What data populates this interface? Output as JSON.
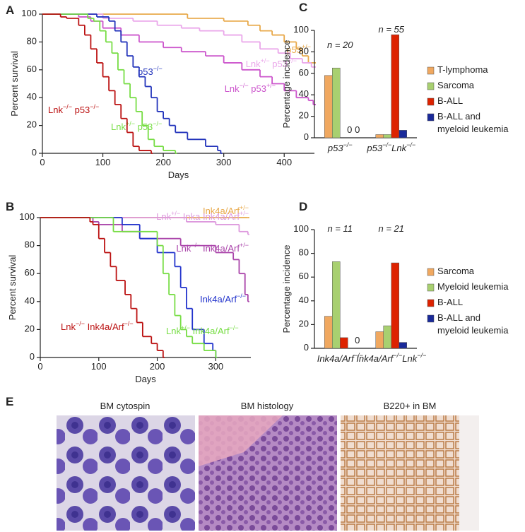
{
  "chart_data": [
    {
      "panel": "A",
      "type": "step",
      "xlabel": "Days",
      "ylabel": "Percent survival",
      "xlim": [
        0,
        450
      ],
      "xticks": [
        0,
        100,
        200,
        300,
        400
      ],
      "ylim": [
        0,
        100
      ],
      "yticks": [
        0,
        20,
        40,
        60,
        80,
        100
      ],
      "series": [
        {
          "name": "p53+/−",
          "color": "#e8a94a",
          "x": [
            0,
            240,
            300,
            340,
            360,
            380,
            400,
            420,
            430,
            440,
            450
          ],
          "values": [
            100,
            97,
            95,
            92,
            88,
            85,
            80,
            75,
            70,
            65,
            65
          ]
        },
        {
          "name": "Lnk+/− p53+/−",
          "color": "#eaa6ea",
          "x": [
            0,
            100,
            150,
            190,
            230,
            260,
            300,
            330,
            360,
            390,
            410,
            430,
            445,
            450
          ],
          "values": [
            100,
            97,
            95,
            92,
            90,
            88,
            85,
            80,
            75,
            72,
            68,
            65,
            62,
            62
          ]
        },
        {
          "name": "Lnk−/− p53+/−",
          "color": "#cc55cc",
          "x": [
            0,
            60,
            80,
            100,
            130,
            160,
            200,
            230,
            270,
            300,
            330,
            360,
            380,
            400,
            420,
            440,
            448,
            450
          ],
          "values": [
            100,
            98,
            95,
            90,
            85,
            80,
            76,
            73,
            70,
            65,
            60,
            55,
            50,
            45,
            40,
            38,
            35,
            35
          ]
        },
        {
          "name": "p53−/−",
          "color": "#2233bb",
          "x": [
            0,
            90,
            110,
            120,
            130,
            140,
            150,
            160,
            170,
            180,
            190,
            200,
            210,
            220,
            240,
            270,
            290,
            295
          ],
          "values": [
            100,
            98,
            95,
            88,
            80,
            70,
            62,
            55,
            48,
            40,
            30,
            25,
            20,
            15,
            10,
            5,
            2,
            0
          ]
        },
        {
          "name": "Lnk+/− p53−/−",
          "color": "#77dd44",
          "x": [
            0,
            75,
            85,
            95,
            105,
            115,
            125,
            135,
            145,
            155,
            165,
            175,
            185,
            200,
            220
          ],
          "values": [
            100,
            97,
            95,
            88,
            80,
            72,
            60,
            50,
            40,
            30,
            20,
            10,
            5,
            2,
            0
          ]
        },
        {
          "name": "Lnk−/− p53−/−",
          "color": "#bb1111",
          "x": [
            0,
            30,
            40,
            60,
            70,
            80,
            90,
            100,
            110,
            120,
            130,
            140,
            150,
            160,
            180
          ],
          "values": [
            100,
            98,
            97,
            92,
            85,
            75,
            65,
            55,
            45,
            35,
            25,
            15,
            5,
            2,
            0
          ]
        }
      ]
    },
    {
      "panel": "B",
      "type": "step",
      "xlabel": "Days",
      "ylabel": "Percent survival",
      "xlim": [
        0,
        360
      ],
      "xticks": [
        0,
        100,
        200,
        300
      ],
      "ylim": [
        0,
        100
      ],
      "yticks": [
        0,
        20,
        40,
        60,
        80,
        100
      ],
      "series": [
        {
          "name": "Ink4a/Arf+/−",
          "color": "#e8a94a",
          "x": [
            0,
            355
          ],
          "values": [
            100,
            100
          ]
        },
        {
          "name": "Lnk+/− Inka Ink4a/Arf+/−",
          "color": "#dd99dd",
          "x": [
            0,
            250,
            300,
            340,
            355
          ],
          "values": [
            100,
            97,
            95,
            90,
            88
          ]
        },
        {
          "name": "Lnk−/− Ink4a/Arf+/−",
          "color": "#aa44aa",
          "x": [
            0,
            90,
            100,
            140,
            170,
            240,
            300,
            330,
            340,
            350,
            355
          ],
          "values": [
            100,
            97,
            95,
            90,
            85,
            80,
            75,
            70,
            60,
            45,
            40
          ]
        },
        {
          "name": "Ink4a/Arf−/−",
          "color": "#2233cc",
          "x": [
            0,
            100,
            140,
            170,
            200,
            230,
            240,
            250,
            260,
            280,
            295,
            300
          ],
          "values": [
            100,
            100,
            95,
            85,
            75,
            65,
            50,
            35,
            20,
            10,
            5,
            0
          ]
        },
        {
          "name": "Lnk+/− Ink4a/Arf−/−",
          "color": "#77dd44",
          "x": [
            0,
            125,
            140,
            200,
            210,
            220,
            230,
            240,
            250,
            260,
            280,
            300
          ],
          "values": [
            100,
            90,
            90,
            80,
            60,
            45,
            30,
            20,
            15,
            10,
            5,
            0
          ]
        },
        {
          "name": "Lnk−/− Ink4a/Arf−/−",
          "color": "#bb1111",
          "x": [
            0,
            85,
            90,
            100,
            110,
            120,
            130,
            145,
            155,
            165,
            175,
            190,
            200,
            210
          ],
          "values": [
            100,
            97,
            95,
            85,
            75,
            65,
            55,
            45,
            35,
            25,
            15,
            10,
            5,
            0
          ]
        }
      ]
    },
    {
      "panel": "C",
      "type": "bar",
      "ylabel": "Percentage incidence",
      "ylim": [
        0,
        100
      ],
      "yticks": [
        0,
        20,
        40,
        60,
        80,
        100
      ],
      "categories": [
        "p53−/−",
        "p53−/−Lnk−/−"
      ],
      "annotations": [
        "n = 20",
        "n = 55"
      ],
      "series": [
        {
          "name": "T-lymphoma",
          "color": "#f0a860",
          "values": [
            58,
            3
          ]
        },
        {
          "name": "Sarcoma",
          "color": "#a8d070",
          "values": [
            65,
            3
          ]
        },
        {
          "name": "B-ALL",
          "color": "#dd2200",
          "values": [
            0,
            96
          ],
          "value_labels": [
            "0",
            null
          ]
        },
        {
          "name": "B-ALL and myeloid leukemia",
          "color": "#1a2a99",
          "values": [
            0,
            7
          ],
          "value_labels": [
            "0",
            null
          ]
        }
      ]
    },
    {
      "panel": "D",
      "type": "bar",
      "ylabel": "Percentage incidence",
      "ylim": [
        0,
        100
      ],
      "yticks": [
        0,
        20,
        40,
        60,
        80,
        100
      ],
      "categories": [
        "Ink4a/Arf−/−",
        "Ink4a/Arf−/−Lnk−/−"
      ],
      "annotations": [
        "n = 11",
        "n = 21"
      ],
      "series": [
        {
          "name": "Sarcoma",
          "color": "#f0a860",
          "values": [
            27,
            14
          ]
        },
        {
          "name": "Myeloid leukemia",
          "color": "#a8d070",
          "values": [
            73,
            19
          ]
        },
        {
          "name": "B-ALL",
          "color": "#dd2200",
          "values": [
            9,
            72
          ]
        },
        {
          "name": "B-ALL and myeloid leukemia",
          "color": "#1a2a99",
          "values": [
            0,
            5
          ],
          "value_labels": [
            "0",
            null
          ]
        }
      ]
    }
  ],
  "panel_e": {
    "panel": "E",
    "images": [
      {
        "title": "BM cytospin"
      },
      {
        "title": "BM histology"
      },
      {
        "title": "B220+ in BM"
      }
    ]
  }
}
